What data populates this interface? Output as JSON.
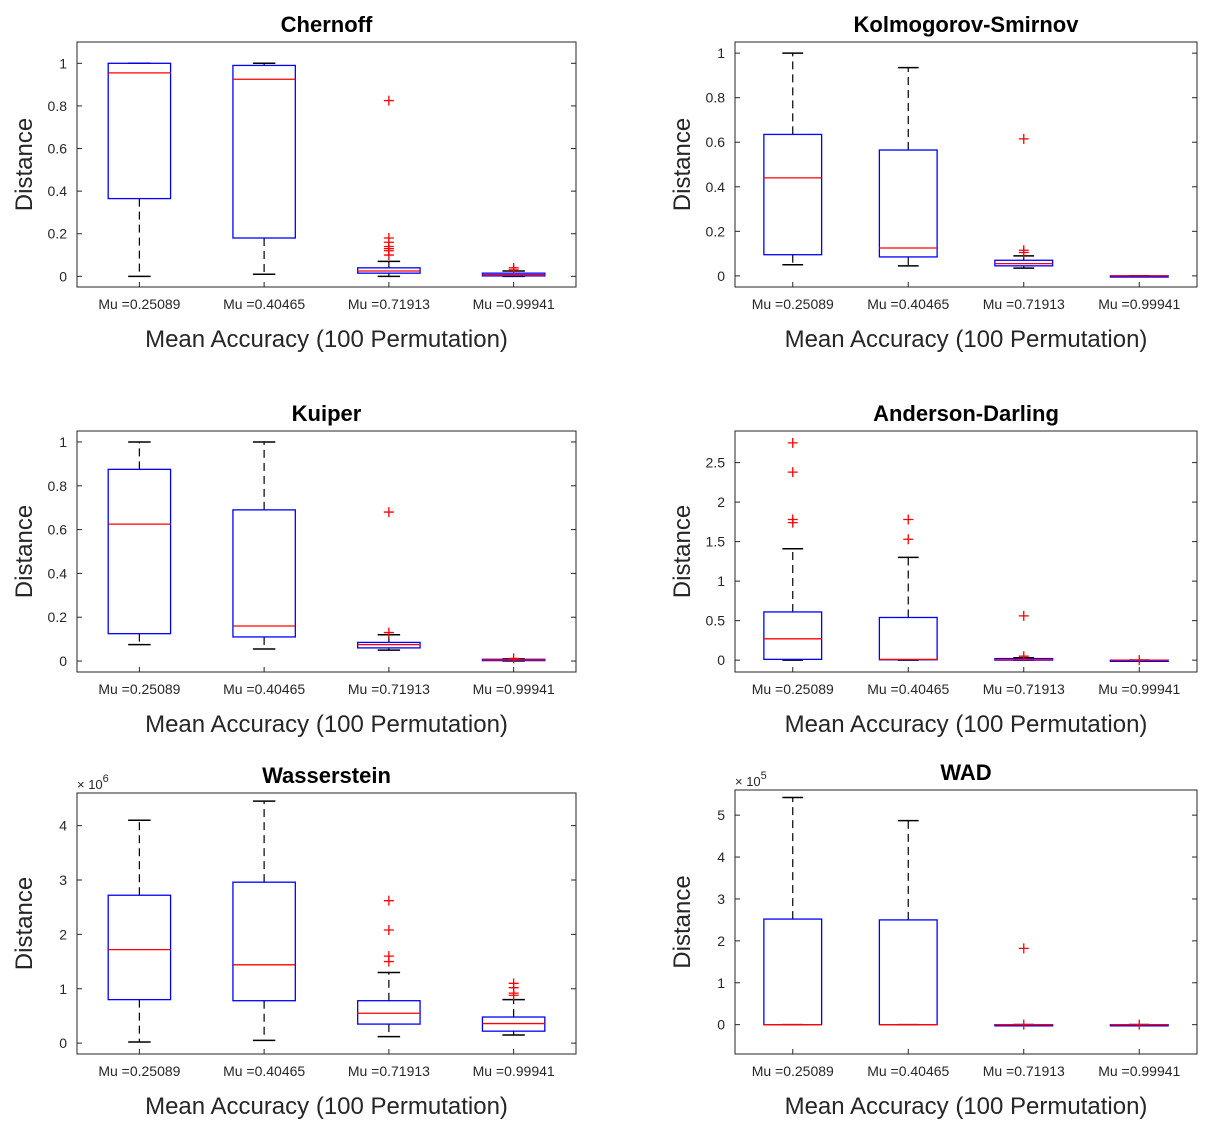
{
  "chart_data": [
    {
      "type": "box",
      "title": "Chernoff",
      "xlabel": "Mean Accuracy (100 Permutation)",
      "ylabel": "Distance",
      "ylim": [
        -0.05,
        1.1
      ],
      "yticks": [
        0,
        0.2,
        0.4,
        0.6,
        0.8,
        1
      ],
      "ytick_labels": [
        "0",
        "0.2",
        "0.4",
        "0.6",
        "0.8",
        "1"
      ],
      "exponent_label": "",
      "categories": [
        "Mu =0.25089",
        "Mu =0.40465",
        "Mu =0.71913",
        "Mu =0.99941"
      ],
      "boxes": [
        {
          "q1": 0.365,
          "median": 0.955,
          "q3": 1.0,
          "wlow": 0.0,
          "whigh": 1.0,
          "outliers": []
        },
        {
          "q1": 0.18,
          "median": 0.925,
          "q3": 0.99,
          "wlow": 0.01,
          "whigh": 1.0,
          "outliers": []
        },
        {
          "q1": 0.015,
          "median": 0.025,
          "q3": 0.04,
          "wlow": 0.0,
          "whigh": 0.07,
          "outliers": [
            0.1,
            0.12,
            0.13,
            0.14,
            0.16,
            0.18,
            0.825
          ]
        },
        {
          "q1": 0.002,
          "median": 0.008,
          "q3": 0.015,
          "wlow": 0.0,
          "whigh": 0.025,
          "outliers": [
            0.03,
            0.04
          ]
        }
      ]
    },
    {
      "type": "box",
      "title": "Kolmogorov-Smirnov",
      "xlabel": "Mean Accuracy (100 Permutation)",
      "ylabel": "Distance",
      "ylim": [
        -0.05,
        1.05
      ],
      "yticks": [
        0,
        0.2,
        0.4,
        0.6,
        0.8,
        1
      ],
      "ytick_labels": [
        "0",
        "0.2",
        "0.4",
        "0.6",
        "0.8",
        "1"
      ],
      "exponent_label": "",
      "categories": [
        "Mu =0.25089",
        "Mu =0.40465",
        "Mu =0.71913",
        "Mu =0.99941"
      ],
      "boxes": [
        {
          "q1": 0.095,
          "median": 0.44,
          "q3": 0.635,
          "wlow": 0.05,
          "whigh": 1.0,
          "outliers": []
        },
        {
          "q1": 0.085,
          "median": 0.125,
          "q3": 0.565,
          "wlow": 0.045,
          "whigh": 0.935,
          "outliers": []
        },
        {
          "q1": 0.045,
          "median": 0.055,
          "q3": 0.07,
          "wlow": 0.035,
          "whigh": 0.09,
          "outliers": [
            0.105,
            0.115,
            0.615
          ]
        },
        {
          "q1": 0.0,
          "median": 0.0,
          "q3": 0.0,
          "wlow": 0.0,
          "whigh": 0.0,
          "outliers": []
        }
      ]
    },
    {
      "type": "box",
      "title": "Kuiper",
      "xlabel": "Mean Accuracy (100 Permutation)",
      "ylabel": "Distance",
      "ylim": [
        -0.05,
        1.05
      ],
      "yticks": [
        0,
        0.2,
        0.4,
        0.6,
        0.8,
        1
      ],
      "ytick_labels": [
        "0",
        "0.2",
        "0.4",
        "0.6",
        "0.8",
        "1"
      ],
      "exponent_label": "",
      "categories": [
        "Mu =0.25089",
        "Mu =0.40465",
        "Mu =0.71913",
        "Mu =0.99941"
      ],
      "boxes": [
        {
          "q1": 0.125,
          "median": 0.625,
          "q3": 0.875,
          "wlow": 0.075,
          "whigh": 1.0,
          "outliers": []
        },
        {
          "q1": 0.11,
          "median": 0.16,
          "q3": 0.69,
          "wlow": 0.055,
          "whigh": 1.0,
          "outliers": []
        },
        {
          "q1": 0.06,
          "median": 0.075,
          "q3": 0.085,
          "wlow": 0.05,
          "whigh": 0.12,
          "outliers": [
            0.13,
            0.68
          ]
        },
        {
          "q1": 0.002,
          "median": 0.005,
          "q3": 0.008,
          "wlow": 0.0,
          "whigh": 0.01,
          "outliers": [
            0.012
          ]
        }
      ]
    },
    {
      "type": "box",
      "title": "Anderson-Darling",
      "xlabel": "Mean Accuracy (100 Permutation)",
      "ylabel": "Distance",
      "ylim": [
        -0.15,
        2.9
      ],
      "yticks": [
        0,
        0.5,
        1,
        1.5,
        2,
        2.5
      ],
      "ytick_labels": [
        "0",
        "0.5",
        "1",
        "1.5",
        "2",
        "2.5"
      ],
      "exponent_label": "",
      "categories": [
        "Mu =0.25089",
        "Mu =0.40465",
        "Mu =0.71913",
        "Mu =0.99941"
      ],
      "boxes": [
        {
          "q1": 0.01,
          "median": 0.27,
          "q3": 0.61,
          "wlow": 0.0,
          "whigh": 1.41,
          "outliers": [
            1.74,
            1.78,
            2.38,
            2.75
          ]
        },
        {
          "q1": 0.005,
          "median": 0.01,
          "q3": 0.54,
          "wlow": 0.0,
          "whigh": 1.3,
          "outliers": [
            1.53,
            1.78
          ]
        },
        {
          "q1": 0.0,
          "median": 0.005,
          "q3": 0.02,
          "wlow": 0.0,
          "whigh": 0.03,
          "outliers": [
            0.05,
            0.56
          ]
        },
        {
          "q1": 0.0,
          "median": 0.0,
          "q3": 0.0,
          "wlow": 0.0,
          "whigh": 0.0,
          "outliers": [
            0.0
          ]
        }
      ]
    },
    {
      "type": "box",
      "title": "Wasserstein",
      "xlabel": "Mean Accuracy (100 Permutation)",
      "ylabel": "Distance",
      "ylim": [
        -0.2,
        4.6
      ],
      "yticks": [
        0,
        1,
        2,
        3,
        4
      ],
      "ytick_labels": [
        "0",
        "1",
        "2",
        "3",
        "4"
      ],
      "exponent_label": "× 10",
      "exponent_power": "6",
      "value_multiplier": 1000000,
      "categories": [
        "Mu =0.25089",
        "Mu =0.40465",
        "Mu =0.71913",
        "Mu =0.99941"
      ],
      "boxes": [
        {
          "q1": 0.8,
          "median": 1.72,
          "q3": 2.72,
          "wlow": 0.02,
          "whigh": 4.1,
          "outliers": []
        },
        {
          "q1": 0.78,
          "median": 1.44,
          "q3": 2.96,
          "wlow": 0.05,
          "whigh": 4.45,
          "outliers": []
        },
        {
          "q1": 0.35,
          "median": 0.55,
          "q3": 0.78,
          "wlow": 0.12,
          "whigh": 1.3,
          "outliers": [
            1.5,
            1.6,
            2.08,
            2.62
          ]
        },
        {
          "q1": 0.22,
          "median": 0.36,
          "q3": 0.48,
          "wlow": 0.15,
          "whigh": 0.8,
          "outliers": [
            0.88,
            0.92,
            1.02,
            1.1
          ]
        }
      ]
    },
    {
      "type": "box",
      "title": "WAD",
      "xlabel": "Mean Accuracy (100 Permutation)",
      "ylabel": "Distance",
      "ylim": [
        -0.7,
        5.6
      ],
      "yticks": [
        0,
        1,
        2,
        3,
        4,
        5
      ],
      "ytick_labels": [
        "0",
        "1",
        "2",
        "3",
        "4",
        "5"
      ],
      "exponent_label": "× 10",
      "exponent_power": "5",
      "value_multiplier": 100000,
      "categories": [
        "Mu =0.25089",
        "Mu =0.40465",
        "Mu =0.71913",
        "Mu =0.99941"
      ],
      "boxes": [
        {
          "q1": 0.0,
          "median": 0.0,
          "q3": 2.52,
          "wlow": 0.0,
          "whigh": 5.42,
          "outliers": []
        },
        {
          "q1": 0.0,
          "median": 0.0,
          "q3": 2.5,
          "wlow": 0.0,
          "whigh": 4.87,
          "outliers": []
        },
        {
          "q1": 0.0,
          "median": 0.0,
          "q3": 0.0,
          "wlow": 0.0,
          "whigh": 0.0,
          "outliers": [
            0.0,
            1.82
          ]
        },
        {
          "q1": 0.0,
          "median": 0.0,
          "q3": 0.0,
          "wlow": 0.0,
          "whigh": 0.0,
          "outliers": [
            0.0
          ]
        }
      ]
    }
  ]
}
